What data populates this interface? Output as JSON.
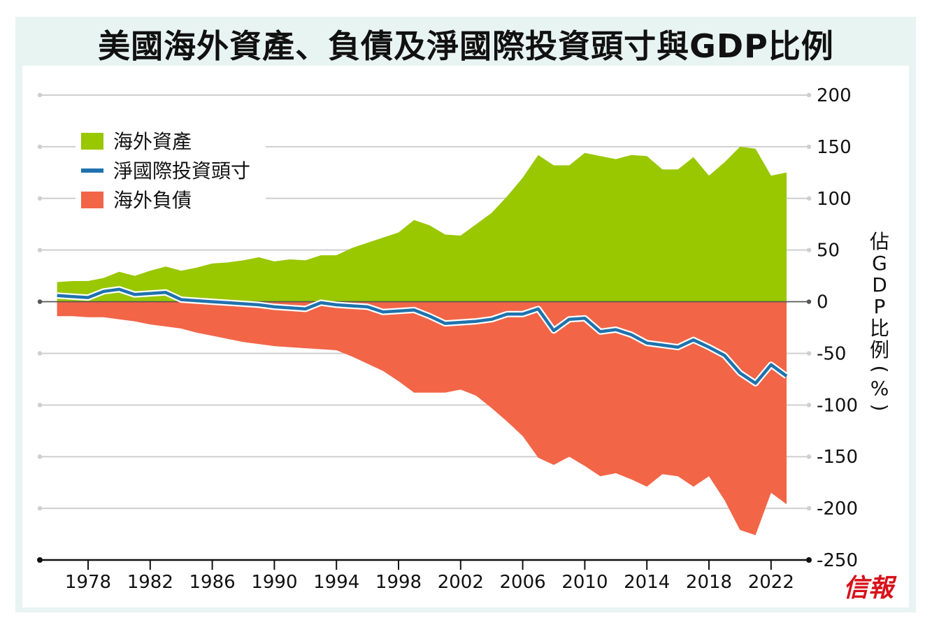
{
  "chart_data": {
    "type": "area",
    "title": "美國海外資產、負債及淨國際投資頭寸與GDP比例",
    "ylabel": "佔GDP比例(%)",
    "xlabel": "",
    "ylim": [
      -250,
      200
    ],
    "yticks": [
      200,
      150,
      100,
      50,
      0,
      -50,
      -100,
      -150,
      -200,
      -250
    ],
    "xticks": [
      1978,
      1982,
      1986,
      1990,
      1994,
      1998,
      2002,
      2006,
      2010,
      2014,
      2018,
      2022
    ],
    "xlim": [
      1974,
      2025
    ],
    "grid": true,
    "legend_position": "top-left",
    "x": [
      1976,
      1977,
      1978,
      1979,
      1980,
      1981,
      1982,
      1983,
      1984,
      1985,
      1986,
      1987,
      1988,
      1989,
      1990,
      1991,
      1992,
      1993,
      1994,
      1995,
      1996,
      1997,
      1998,
      1999,
      2000,
      2001,
      2002,
      2003,
      2004,
      2005,
      2006,
      2007,
      2008,
      2009,
      2010,
      2011,
      2012,
      2013,
      2014,
      2015,
      2016,
      2017,
      2018,
      2019,
      2020,
      2021,
      2022,
      2023
    ],
    "series": [
      {
        "name": "海外資產",
        "kind": "area",
        "color": "#99c700",
        "values": [
          19,
          20,
          20,
          23,
          29,
          25,
          30,
          34,
          30,
          33,
          37,
          38,
          40,
          43,
          39,
          41,
          40,
          45,
          45,
          52,
          57,
          62,
          67,
          79,
          74,
          65,
          64,
          75,
          86,
          102,
          120,
          142,
          132,
          132,
          144,
          141,
          138,
          142,
          141,
          128,
          128,
          140,
          122,
          135,
          150,
          148,
          122,
          125
        ]
      },
      {
        "name": "淨國際投資頭寸",
        "kind": "line",
        "color": "#1f72ad",
        "values": [
          6,
          5,
          4,
          10,
          12,
          7,
          8,
          9,
          2,
          1,
          0,
          -1,
          -2,
          -3,
          -5,
          -6,
          -7,
          -1,
          -3,
          -4,
          -5,
          -10,
          -9,
          -8,
          -14,
          -21,
          -20,
          -19,
          -17,
          -12,
          -12,
          -7,
          -28,
          -17,
          -16,
          -29,
          -27,
          -32,
          -40,
          -42,
          -44,
          -37,
          -44,
          -52,
          -69,
          -79,
          -61,
          -72
        ]
      },
      {
        "name": "海外負債",
        "kind": "area",
        "color": "#f26547",
        "values": [
          -14,
          -14,
          -15,
          -15,
          -17,
          -19,
          -22,
          -24,
          -26,
          -30,
          -33,
          -36,
          -39,
          -41,
          -43,
          -44,
          -45,
          -46,
          -47,
          -53,
          -60,
          -67,
          -77,
          -88,
          -88,
          -88,
          -85,
          -91,
          -103,
          -116,
          -130,
          -151,
          -158,
          -150,
          -159,
          -169,
          -166,
          -172,
          -179,
          -167,
          -169,
          -179,
          -169,
          -192,
          -221,
          -226,
          -185,
          -196
        ]
      }
    ]
  },
  "publisher_logo": "信報"
}
